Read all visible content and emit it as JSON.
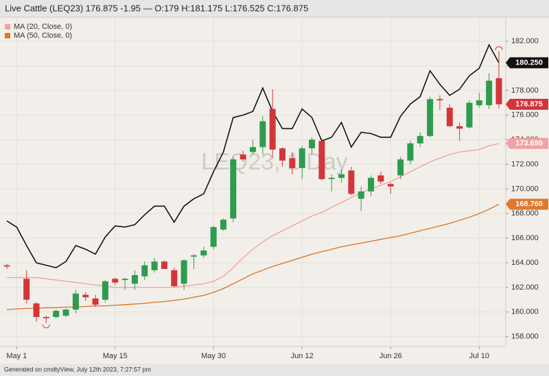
{
  "chart_data": {
    "type": "candlestick",
    "title": "Live Cattle (LEQ23) 176.875 -1.95 — O:179 H:181.175 L:176.525 C:176.875",
    "watermark": "LEQ23, 1 Day",
    "footer": "Generated on cmdtyView, July 12th 2023, 7:27:57 pm",
    "categories": [
      null,
      "May 1",
      null,
      null,
      null,
      null,
      null,
      null,
      null,
      null,
      null,
      "May 15",
      null,
      null,
      null,
      null,
      null,
      null,
      null,
      null,
      null,
      "May 30",
      null,
      null,
      null,
      null,
      null,
      null,
      null,
      null,
      "Jun 12",
      null,
      null,
      null,
      null,
      null,
      null,
      null,
      null,
      "Jun 26",
      null,
      null,
      null,
      null,
      null,
      null,
      null,
      null,
      "Jul 10",
      null,
      null
    ],
    "candles": {
      "up_color": "#2f9b4e",
      "down_color": "#d2363b",
      "open": [
        163.8,
        null,
        162.7,
        160.7,
        159.6,
        159.6,
        159.7,
        160.2,
        161.4,
        161.1,
        161.0,
        162.7,
        162.6,
        162.3,
        162.9,
        163.4,
        164.1,
        163.4,
        162.3,
        164.5,
        164.6,
        165.3,
        166.7,
        167.6,
        172.8,
        173.0,
        173.4,
        176.5,
        173.3,
        172.5,
        171.7,
        173.3,
        173.9,
        170.8,
        170.9,
        171.5,
        169.2,
        169.8,
        171.1,
        170.4,
        171.1,
        172.3,
        173.7,
        174.3,
        177.3,
        176.6,
        175.1,
        175.0,
        176.8,
        176.8,
        179
      ],
      "high": [
        163.9,
        null,
        163.4,
        160.8,
        159.7,
        160.2,
        160.3,
        161.8,
        161.6,
        161.4,
        162.6,
        162.8,
        162.8,
        163.4,
        164.1,
        164.4,
        164.2,
        163.6,
        164.3,
        164.7,
        165.3,
        167.0,
        167.6,
        172.6,
        173.1,
        174.0,
        175.9,
        178.1,
        173.4,
        173.0,
        173.5,
        174.2,
        174.1,
        171.2,
        171.6,
        171.8,
        170.2,
        171.1,
        171.4,
        170.5,
        172.6,
        173.9,
        174.6,
        177.5,
        177.6,
        176.9,
        175.4,
        177.2,
        177.8,
        179.4,
        181.175
      ],
      "low": [
        163.5,
        null,
        160.7,
        159.2,
        159.1,
        159.5,
        159.6,
        159.9,
        160.9,
        160.4,
        160.8,
        162.2,
        161.8,
        161.8,
        162.6,
        163.2,
        163.5,
        162.0,
        161.8,
        163.5,
        164.4,
        165.1,
        166.6,
        167.3,
        172.2,
        172.8,
        172.8,
        172.5,
        171.8,
        171.2,
        170.8,
        172.8,
        170.7,
        169.8,
        170.5,
        169.5,
        168.2,
        169.4,
        170.4,
        169.6,
        170.8,
        172.0,
        173.4,
        174.2,
        176.4,
        175.0,
        173.9,
        174.9,
        176.6,
        176.5,
        176.525
      ],
      "close": [
        163.7,
        null,
        161.0,
        159.6,
        159.5,
        160.1,
        160.2,
        161.5,
        161.2,
        160.6,
        162.5,
        162.4,
        162.7,
        163.0,
        163.8,
        164.1,
        163.5,
        162.1,
        164.2,
        164.6,
        165.0,
        166.9,
        167.5,
        172.4,
        172.4,
        173.4,
        175.5,
        173.2,
        172.3,
        171.7,
        173.3,
        174.0,
        170.8,
        170.9,
        171.2,
        169.6,
        169.8,
        170.9,
        170.6,
        170.2,
        172.4,
        173.7,
        174.3,
        177.3,
        177.2,
        175.1,
        174.9,
        177.0,
        177.2,
        178.8,
        176.875
      ],
      "close_labels": [
        null,
        null,
        null,
        null,
        null,
        null,
        null,
        null,
        null,
        null,
        null,
        null,
        null,
        null,
        null,
        null,
        null,
        null,
        null,
        null,
        null,
        null,
        null,
        null,
        null,
        null,
        null,
        null,
        null,
        null,
        null,
        null,
        null,
        null,
        null,
        null,
        null,
        null,
        null,
        null,
        null,
        null,
        null,
        null,
        null,
        null,
        null,
        null,
        null,
        null,
        "176.875"
      ]
    },
    "series": [
      {
        "color": "#111111",
        "values": [
          167.4,
          166.9,
          165.4,
          164.0,
          163.8,
          163.6,
          164.1,
          165.4,
          165.1,
          164.7,
          166.1,
          167.0,
          166.9,
          167.1,
          167.9,
          168.6,
          168.6,
          167.3,
          168.6,
          169.2,
          169.6,
          171.4,
          173.0,
          175.8,
          176.0,
          176.3,
          178.2,
          176.3,
          174.9,
          174.9,
          176.5,
          175.8,
          173.9,
          174.2,
          175.4,
          173.4,
          174.6,
          174.5,
          174.2,
          174.2,
          175.9,
          176.9,
          177.5,
          179.6,
          178.5,
          177.6,
          178.1,
          179.2,
          179.8,
          181.7,
          180.25
        ],
        "value_labels": [
          null,
          null,
          null,
          null,
          null,
          null,
          null,
          null,
          null,
          null,
          null,
          null,
          null,
          null,
          null,
          null,
          null,
          null,
          null,
          null,
          null,
          null,
          null,
          null,
          null,
          null,
          null,
          null,
          null,
          null,
          null,
          null,
          null,
          null,
          null,
          null,
          null,
          null,
          null,
          null,
          null,
          null,
          null,
          null,
          null,
          null,
          null,
          null,
          null,
          null,
          "180.250"
        ]
      },
      {
        "name": "MA (20, Close, 0)",
        "color": "#f0a3a3",
        "values": [
          162.8,
          162.8,
          162.8,
          162.8,
          162.7,
          162.6,
          162.5,
          162.4,
          162.3,
          162.2,
          162.1,
          162.0,
          162.0,
          162.0,
          162.0,
          162.0,
          162.0,
          162.0,
          162.1,
          162.2,
          162.3,
          162.5,
          162.9,
          163.6,
          164.4,
          165.1,
          165.7,
          166.2,
          166.6,
          167.0,
          167.4,
          167.8,
          168.1,
          168.5,
          168.9,
          169.3,
          169.7,
          170.0,
          170.3,
          170.6,
          171.0,
          171.4,
          171.8,
          172.2,
          172.5,
          172.8,
          173.0,
          173.1,
          173.2,
          173.5,
          173.699
        ],
        "value_labels": [
          null,
          null,
          null,
          null,
          null,
          null,
          null,
          null,
          null,
          null,
          null,
          null,
          null,
          null,
          null,
          null,
          null,
          null,
          null,
          null,
          null,
          null,
          null,
          null,
          null,
          null,
          null,
          null,
          null,
          null,
          null,
          null,
          null,
          null,
          null,
          null,
          null,
          null,
          null,
          null,
          null,
          null,
          null,
          null,
          null,
          null,
          null,
          null,
          null,
          null,
          "173.699"
        ]
      },
      {
        "name": "MA (50, Close, 0)",
        "color": "#e0782c",
        "values": [
          160.2,
          160.25,
          160.3,
          160.3,
          160.35,
          160.35,
          160.4,
          160.4,
          160.45,
          160.5,
          160.5,
          160.55,
          160.6,
          160.65,
          160.7,
          160.8,
          160.85,
          160.95,
          161.05,
          161.2,
          161.35,
          161.6,
          161.9,
          162.3,
          162.7,
          163.1,
          163.4,
          163.7,
          163.95,
          164.2,
          164.45,
          164.7,
          164.9,
          165.1,
          165.3,
          165.45,
          165.6,
          165.75,
          165.9,
          166.05,
          166.2,
          166.4,
          166.6,
          166.8,
          167.0,
          167.2,
          167.45,
          167.7,
          168.0,
          168.35,
          168.76
        ],
        "value_labels": [
          null,
          null,
          null,
          null,
          null,
          null,
          null,
          null,
          null,
          null,
          null,
          null,
          null,
          null,
          null,
          null,
          null,
          null,
          null,
          null,
          null,
          null,
          null,
          null,
          null,
          null,
          null,
          null,
          null,
          null,
          null,
          null,
          null,
          null,
          null,
          null,
          null,
          null,
          null,
          null,
          null,
          null,
          null,
          null,
          null,
          null,
          null,
          null,
          null,
          null,
          "168.760"
        ]
      }
    ],
    "ylim": [
      157.2,
      183.9
    ],
    "yticks": [
      {
        "value": 158,
        "label": "158.000"
      },
      {
        "value": 160,
        "label": "160.000"
      },
      {
        "value": 162,
        "label": "162.000"
      },
      {
        "value": 164,
        "label": "164.000"
      },
      {
        "value": 166,
        "label": "166.000"
      },
      {
        "value": 168,
        "label": "168.000"
      },
      {
        "value": 170,
        "label": "170.000"
      },
      {
        "value": 172,
        "label": "172.000"
      },
      {
        "value": 174,
        "label": "174.000"
      },
      {
        "value": 176,
        "label": "176.000"
      },
      {
        "value": 178,
        "label": "178.000"
      },
      {
        "value": 180,
        "label": "180.000"
      },
      {
        "value": 182,
        "label": "182.000"
      }
    ],
    "grid": true
  }
}
